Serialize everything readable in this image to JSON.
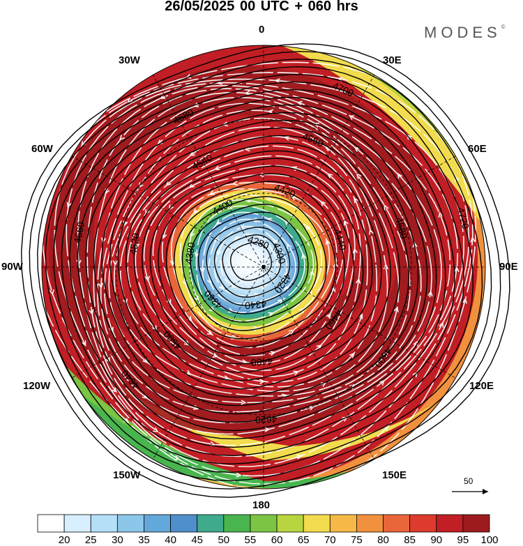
{
  "title": "26/05/2025  00 UTC  + 060 hrs",
  "brand": {
    "name": "MODES",
    "mark": "©"
  },
  "longitude_labels": {
    "top": "0",
    "bottom": "180",
    "w30": "30W",
    "e30": "30E",
    "w60": "60W",
    "e60": "60E",
    "w90": "90W",
    "e90": "90E",
    "w120": "120W",
    "e120": "120E",
    "w150": "150W",
    "e150": "150E"
  },
  "vector_scale": {
    "label": "50"
  },
  "colorbar": {
    "ticks": [
      "20",
      "25",
      "30",
      "35",
      "40",
      "45",
      "50",
      "55",
      "60",
      "65",
      "70",
      "75",
      "80",
      "85",
      "90",
      "95",
      "100"
    ],
    "colors": [
      "#ffffff",
      "#d7efff",
      "#b4e0f7",
      "#8cc7ea",
      "#63a8da",
      "#4f8fcb",
      "#3faa8c",
      "#49b54f",
      "#7cc443",
      "#b8d540",
      "#f2dc4e",
      "#f6b947",
      "#f1913d",
      "#e9663a",
      "#dc3b2e",
      "#c11f25",
      "#9d1b1f"
    ]
  },
  "contours": {
    "labels": [
      "4280",
      "4300",
      "4320",
      "4340",
      "4360",
      "4380",
      "4400",
      "4420",
      "4440",
      "4460",
      "4480",
      "4500",
      "4520",
      "4540",
      "4560",
      "4580",
      "4600",
      "4620",
      "4640",
      "4660",
      "4680",
      "4700",
      "4720",
      "4740",
      "4760",
      "4780",
      "4800"
    ]
  }
}
